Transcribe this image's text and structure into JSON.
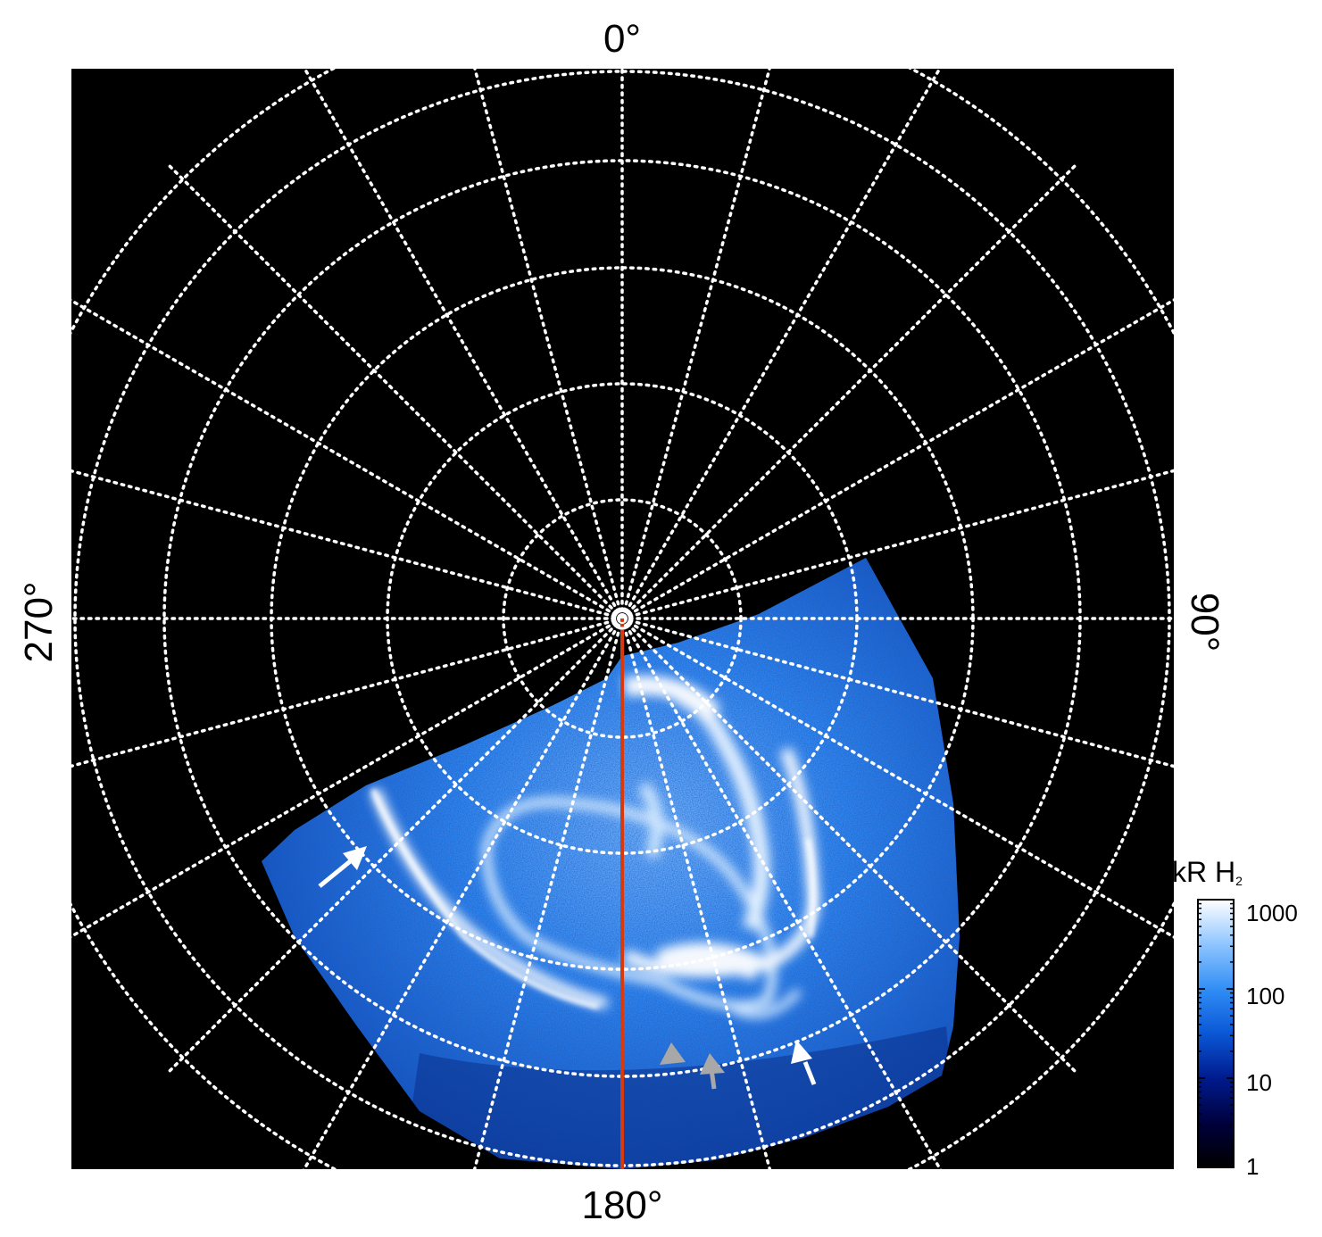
{
  "figure": {
    "longitude_labels": {
      "top": "0°",
      "right": "90°",
      "bottom": "180°",
      "left": "270°"
    },
    "colorbar": {
      "title_main": "kR H",
      "title_sub": "2",
      "tick_labels": [
        "1000",
        "100",
        "10",
        "1"
      ],
      "gradient_colors": [
        "#000000",
        "#00003a",
        "#001a8c",
        "#0a57d6",
        "#2f8cf4",
        "#8cc4ff",
        "#ffffff"
      ]
    },
    "colors": {
      "background": "#000000",
      "grid": "#ffffff",
      "meridian_line": "#d63a10",
      "aurora_low": "#062a78",
      "aurora_mid": "#1a6ee6",
      "aurora_high": "#ffffff",
      "arrow_white": "#ffffff",
      "arrow_gray": "#a8a8a8"
    },
    "grid": {
      "meridian_spacing_deg": 15,
      "latitude_circle_count": 6
    },
    "annotations": {
      "white_arrows": 2,
      "gray_arrows": 2
    }
  }
}
